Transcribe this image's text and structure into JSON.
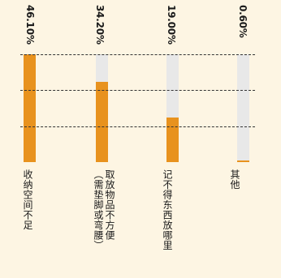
{
  "chart_data": {
    "type": "bar",
    "orientation": "vertical",
    "categories": [
      "收纳空间不足",
      "取放物品不方便（需垫脚或弯腰）",
      "记不得东西放哪里",
      "其他"
    ],
    "category_lines": [
      [
        "收纳空间不足"
      ],
      [
        "取放物品不方便",
        "（需垫脚或弯腰）"
      ],
      [
        "记不得东西放哪里"
      ],
      [
        "其他"
      ]
    ],
    "values": [
      46.1,
      34.2,
      19.0,
      0.6
    ],
    "value_labels": [
      "46.10%",
      "34.20%",
      "19.00%",
      "0.60%"
    ],
    "ylim": [
      0,
      46.1
    ],
    "gridlines": [
      46.1,
      30.73,
      15.37
    ],
    "grid": true,
    "title": "",
    "xlabel": "",
    "ylabel": "",
    "colors": {
      "fill": "#e8921e",
      "track": "#e8e8e8",
      "background": "#fdf5e3"
    }
  }
}
